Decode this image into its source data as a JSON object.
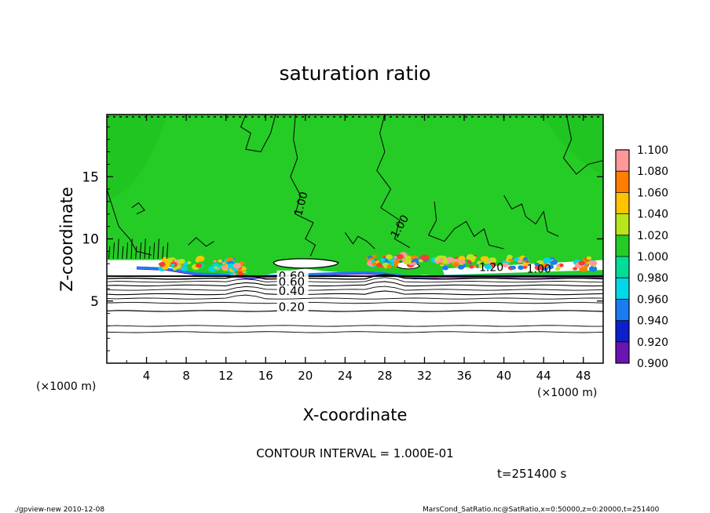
{
  "chart_data": {
    "type": "heatmap",
    "title": "saturation ratio",
    "xlabel": "X-coordinate",
    "ylabel": "Z-coordinate",
    "x_unit": "(×1000 m)",
    "y_unit": "(×1000 m)",
    "xlim": [
      0,
      50
    ],
    "ylim": [
      0,
      20
    ],
    "x_ticks": [
      4,
      8,
      12,
      16,
      20,
      24,
      28,
      32,
      36,
      40,
      44,
      48
    ],
    "y_ticks": [
      5,
      10,
      15
    ],
    "colorbar": {
      "levels": [
        "1.100",
        "1.080",
        "1.060",
        "1.040",
        "1.020",
        "1.000",
        "0.980",
        "0.960",
        "0.940",
        "0.920",
        "0.900"
      ],
      "colors": [
        "#ff9999",
        "#ff3b2a",
        "#ff7e00",
        "#ffc400",
        "#b9e61b",
        "#25cc25",
        "#00dd99",
        "#00d8e8",
        "#1a7cf0",
        "#0b1fcc",
        "#6a14b4"
      ]
    },
    "contour_labels": [
      {
        "text": "1.00",
        "x": 19.6,
        "z": 11.8
      },
      {
        "text": "1.00",
        "x": 29.2,
        "z": 10.0
      },
      {
        "text": "1.20",
        "x": 37.5,
        "z": 7.4
      },
      {
        "text": "1.00",
        "x": 42.3,
        "z": 7.3
      },
      {
        "text": "0.60",
        "x": 17.3,
        "z": 6.7
      },
      {
        "text": "0.60",
        "x": 17.3,
        "z": 6.2
      },
      {
        "text": "0.40",
        "x": 17.3,
        "z": 5.5
      },
      {
        "text": "0.20",
        "x": 17.3,
        "z": 4.2
      }
    ],
    "contour_interval": "CONTOUR INTERVAL = 1.000E-01",
    "time": "t=251400 s",
    "footer_left": "./gpview-new  2010-12-08",
    "footer_right": "MarsCond_SatRatio.nc@SatRatio,x=0:50000,z=0:20000,t=251400"
  }
}
